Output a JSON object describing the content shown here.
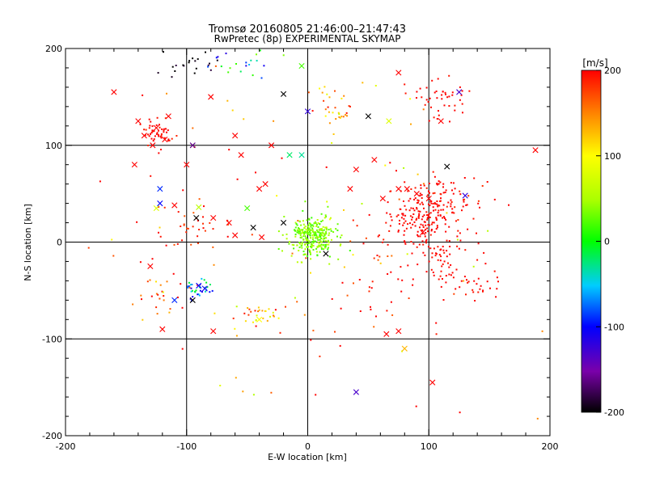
{
  "chart_data": {
    "type": "scatter",
    "title": "Tromsø 20160805 21:46:00–21:47:43",
    "subtitle": "RwPretec (8p) EXPERIMENTAL SKYMAP",
    "xlabel": "E-W location [km]",
    "ylabel": "N-S location [km]",
    "xlim": [
      -200,
      200
    ],
    "ylim": [
      -200,
      200
    ],
    "xticks": [
      "-200",
      "-100",
      "0",
      "100",
      "200"
    ],
    "yticks": [
      "-200",
      "-100",
      "0",
      "100",
      "200"
    ],
    "grid": true,
    "grid_lines": [
      -100,
      0,
      100
    ],
    "colorbar": {
      "label": "[m/s]",
      "range": [
        -200,
        200
      ],
      "ticks": [
        "200",
        "100",
        "0",
        "-100",
        "-200"
      ]
    },
    "markers": [
      "dot",
      "cross"
    ],
    "clusters": [
      {
        "center": [
          -95,
          180
        ],
        "spread": [
          18,
          12
        ],
        "n": 20,
        "value": -200,
        "jitter": 20
      },
      {
        "center": [
          -125,
          112
        ],
        "spread": [
          10,
          9
        ],
        "n": 50,
        "value": 200,
        "jitter": 15
      },
      {
        "center": [
          -95,
          20
        ],
        "spread": [
          30,
          20
        ],
        "n": 40,
        "value": 190,
        "jitter": 25
      },
      {
        "center": [
          5,
          5
        ],
        "spread": [
          14,
          16
        ],
        "n": 300,
        "value": 40,
        "jitter": 25
      },
      {
        "center": [
          95,
          30
        ],
        "spread": [
          20,
          25
        ],
        "n": 200,
        "value": 200,
        "jitter": 10
      },
      {
        "center": [
          120,
          40
        ],
        "spread": [
          18,
          18
        ],
        "n": 40,
        "value": 200,
        "jitter": 20
      },
      {
        "center": [
          115,
          -20
        ],
        "spread": [
          20,
          20
        ],
        "n": 60,
        "value": 200,
        "jitter": 10
      },
      {
        "center": [
          140,
          -45
        ],
        "spread": [
          15,
          10
        ],
        "n": 25,
        "value": 200,
        "jitter": 10
      },
      {
        "center": [
          -90,
          -48
        ],
        "spread": [
          10,
          8
        ],
        "n": 35,
        "value": -60,
        "jitter": 60
      },
      {
        "center": [
          -40,
          -75
        ],
        "spread": [
          15,
          10
        ],
        "n": 30,
        "value": 130,
        "jitter": 70
      },
      {
        "center": [
          -125,
          -55
        ],
        "spread": [
          15,
          15
        ],
        "n": 20,
        "value": 180,
        "jitter": 30
      },
      {
        "center": [
          20,
          140
        ],
        "spread": [
          15,
          15
        ],
        "n": 30,
        "value": 130,
        "jitter": 70
      },
      {
        "center": [
          110,
          150
        ],
        "spread": [
          15,
          15
        ],
        "n": 45,
        "value": 200,
        "jitter": 10
      },
      {
        "center": [
          -50,
          185
        ],
        "spread": [
          20,
          10
        ],
        "n": 20,
        "value": -40,
        "jitter": 80
      },
      {
        "center": [
          60,
          -40
        ],
        "spread": [
          40,
          40
        ],
        "n": 40,
        "value": 190,
        "jitter": 30
      },
      {
        "center": [
          0,
          0
        ],
        "spread": [
          140,
          140
        ],
        "n": 110,
        "value": 150,
        "jitter": 100
      }
    ],
    "crosses": [
      {
        "x": -20,
        "y": 153,
        "value": -200
      },
      {
        "x": -5,
        "y": 182,
        "value": 20
      },
      {
        "x": 67,
        "y": 125,
        "value": 80
      },
      {
        "x": 75,
        "y": 175,
        "value": 200
      },
      {
        "x": 50,
        "y": 130,
        "value": -200
      },
      {
        "x": 0,
        "y": 135,
        "value": -120
      },
      {
        "x": 125,
        "y": 155,
        "value": -130
      },
      {
        "x": 110,
        "y": 125,
        "value": 200
      },
      {
        "x": -160,
        "y": 155,
        "value": 200
      },
      {
        "x": -135,
        "y": 110,
        "value": 200
      },
      {
        "x": -125,
        "y": 118,
        "value": 200
      },
      {
        "x": -118,
        "y": 106,
        "value": 200
      },
      {
        "x": -128,
        "y": 100,
        "value": 200
      },
      {
        "x": -140,
        "y": 125,
        "value": 200
      },
      {
        "x": -115,
        "y": 130,
        "value": 200
      },
      {
        "x": -95,
        "y": 100,
        "value": -160
      },
      {
        "x": -60,
        "y": 110,
        "value": 200
      },
      {
        "x": -55,
        "y": 90,
        "value": 200
      },
      {
        "x": -80,
        "y": 150,
        "value": 200
      },
      {
        "x": -143,
        "y": 80,
        "value": 200
      },
      {
        "x": -100,
        "y": 80,
        "value": 200
      },
      {
        "x": -122,
        "y": 55,
        "value": -90
      },
      {
        "x": -125,
        "y": 35,
        "value": 80
      },
      {
        "x": -110,
        "y": 38,
        "value": 200
      },
      {
        "x": -122,
        "y": 40,
        "value": -100
      },
      {
        "x": -90,
        "y": 36,
        "value": 60
      },
      {
        "x": -92,
        "y": 25,
        "value": -200
      },
      {
        "x": -78,
        "y": 25,
        "value": 200
      },
      {
        "x": -65,
        "y": 20,
        "value": 200
      },
      {
        "x": -50,
        "y": 35,
        "value": 20
      },
      {
        "x": -45,
        "y": 15,
        "value": -200
      },
      {
        "x": -60,
        "y": 7,
        "value": 200
      },
      {
        "x": -38,
        "y": 5,
        "value": 200
      },
      {
        "x": -30,
        "y": 100,
        "value": 200
      },
      {
        "x": -35,
        "y": 60,
        "value": 200
      },
      {
        "x": -40,
        "y": 55,
        "value": 200
      },
      {
        "x": -15,
        "y": 90,
        "value": -20
      },
      {
        "x": -5,
        "y": 90,
        "value": -30
      },
      {
        "x": 40,
        "y": 75,
        "value": 200
      },
      {
        "x": 55,
        "y": 85,
        "value": 200
      },
      {
        "x": 62,
        "y": 45,
        "value": 200
      },
      {
        "x": 75,
        "y": 55,
        "value": 200
      },
      {
        "x": 90,
        "y": 50,
        "value": 200
      },
      {
        "x": 100,
        "y": 45,
        "value": 200
      },
      {
        "x": 82,
        "y": 55,
        "value": 200
      },
      {
        "x": 115,
        "y": 78,
        "value": -200
      },
      {
        "x": 130,
        "y": 48,
        "value": -120
      },
      {
        "x": 188,
        "y": 95,
        "value": 200
      },
      {
        "x": -20,
        "y": 20,
        "value": -200
      },
      {
        "x": 15,
        "y": -12,
        "value": -200
      },
      {
        "x": -130,
        "y": -25,
        "value": 200
      },
      {
        "x": -90,
        "y": -45,
        "value": -100
      },
      {
        "x": -95,
        "y": -60,
        "value": -200
      },
      {
        "x": -85,
        "y": -48,
        "value": -110
      },
      {
        "x": -110,
        "y": -60,
        "value": -90
      },
      {
        "x": -120,
        "y": -90,
        "value": 200
      },
      {
        "x": -78,
        "y": -92,
        "value": 200
      },
      {
        "x": -40,
        "y": -80,
        "value": 100
      },
      {
        "x": 80,
        "y": -110,
        "value": 130
      },
      {
        "x": 75,
        "y": -92,
        "value": 200
      },
      {
        "x": 103,
        "y": -145,
        "value": 200
      },
      {
        "x": 40,
        "y": -155,
        "value": -130
      },
      {
        "x": 65,
        "y": -95,
        "value": 200
      },
      {
        "x": 95,
        "y": 10,
        "value": 200
      },
      {
        "x": 35,
        "y": 55,
        "value": 200
      }
    ]
  }
}
